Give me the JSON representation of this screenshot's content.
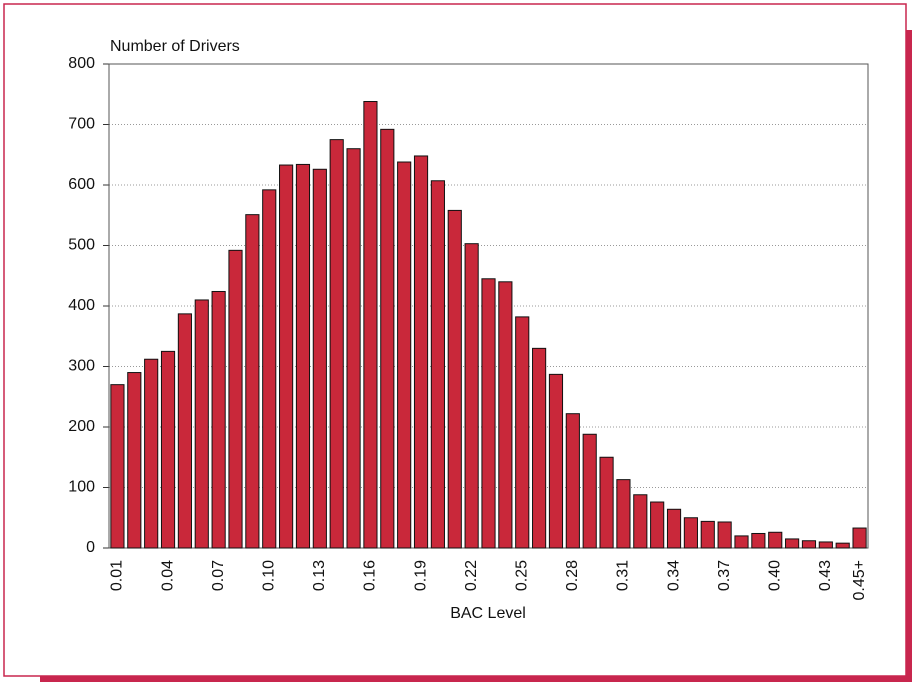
{
  "chart_data": {
    "type": "bar",
    "y_axis_label": "Number of Drivers",
    "x_axis_label": "BAC Level",
    "categories": [
      "0.01",
      null,
      null,
      "0.04",
      null,
      null,
      "0.07",
      null,
      null,
      "0.10",
      null,
      null,
      "0.13",
      null,
      null,
      "0.16",
      null,
      null,
      "0.19",
      null,
      null,
      "0.22",
      null,
      null,
      "0.25",
      null,
      null,
      "0.28",
      null,
      null,
      "0.31",
      null,
      null,
      "0.34",
      null,
      null,
      "0.37",
      null,
      null,
      "0.40",
      null,
      null,
      "0.43",
      null,
      "0.45+"
    ],
    "values": [
      270,
      290,
      312,
      325,
      387,
      410,
      424,
      492,
      551,
      592,
      633,
      634,
      626,
      675,
      660,
      738,
      692,
      638,
      648,
      607,
      558,
      503,
      445,
      440,
      382,
      330,
      287,
      222,
      188,
      150,
      113,
      88,
      76,
      64,
      50,
      44,
      43,
      20,
      24,
      26,
      15,
      12,
      10,
      8,
      33
    ],
    "color": "#c9283a",
    "ylim": [
      0,
      800
    ],
    "yticks": [
      0,
      100,
      200,
      300,
      400,
      500,
      600,
      700,
      800
    ],
    "grid": true
  }
}
